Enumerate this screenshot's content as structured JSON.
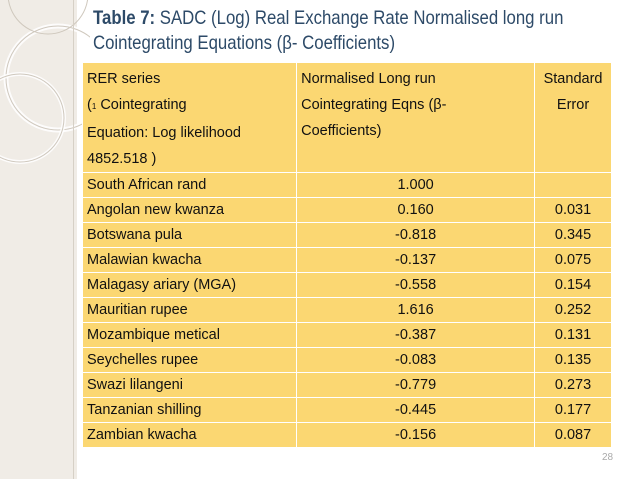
{
  "slide": {
    "title_lead": "Table 7:",
    "title_line1": "SADC (Log) Real Exchange Rate Normalised long run",
    "title_line2": "Cointegrating Equations (β- Coefficients)",
    "page_number": "28"
  },
  "table": {
    "header": {
      "col1_line1": "RER series",
      "col1_prefix": "(",
      "col1_small": "1",
      "col1_line2": " Cointegrating",
      "col1_line3": "Equation:  Log likelihood",
      "col1_line4": "4852.518 )",
      "col2_line1": "Normalised Long run",
      "col2_line2": "Cointegrating  Eqns (β-",
      "col2_line3": "Coefficients)",
      "col3_line1": "Standard",
      "col3_line2": "Error"
    },
    "rows": [
      {
        "series": "South African  rand",
        "coef": "1.000",
        "se": ""
      },
      {
        "series": "Angolan new kwanza",
        "coef": "0.160",
        "se": "0.031"
      },
      {
        "series": "Botswana pula",
        "coef": "-0.818",
        "se": "0.345"
      },
      {
        "series": "Malawian kwacha",
        "coef": "-0.137",
        "se": "0.075"
      },
      {
        "series": "Malagasy ariary (MGA)",
        "coef": "-0.558",
        "se": "0.154"
      },
      {
        "series": "Mauritian rupee",
        "coef": "1.616",
        "se": "0.252"
      },
      {
        "series": "Mozambique  metical",
        "coef": "-0.387",
        "se": "0.131"
      },
      {
        "series": "Seychelles rupee",
        "coef": "-0.083",
        "se": "0.135"
      },
      {
        "series": "Swazi lilangeni",
        "coef": "-0.779",
        "se": "0.273"
      },
      {
        "series": "Tanzanian shilling",
        "coef": "-0.445",
        "se": "0.177"
      },
      {
        "series": "Zambian kwacha",
        "coef": "-0.156",
        "se": "0.087"
      }
    ]
  },
  "colors": {
    "cell_fill": "#fbd772",
    "title_text": "#2d4a68",
    "side_panel": "#f0ece6"
  }
}
